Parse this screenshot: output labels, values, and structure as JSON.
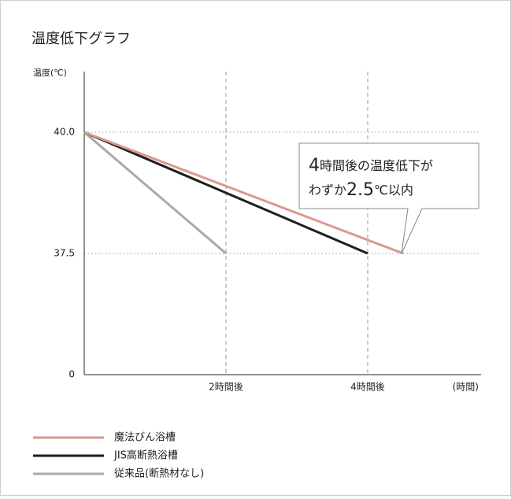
{
  "chart_data": {
    "type": "line",
    "title": "温度低下グラフ",
    "y_label": "温度(℃)",
    "x_label": "(時間)",
    "xlim": [
      0,
      5.6
    ],
    "xticks": [
      {
        "value": 2,
        "label": "2時間後"
      },
      {
        "value": 4,
        "label": "4時間後"
      }
    ],
    "ylim": [
      0,
      41.25
    ],
    "yticks": [
      0,
      37.5,
      {
        "value": 40,
        "label": "40.0"
      }
    ],
    "series": [
      {
        "name": "魔法びん浴槽",
        "color": "#d99a8c",
        "x": [
          0,
          4.5
        ],
        "values": [
          40,
          37.5
        ]
      },
      {
        "name": "JIS高断熱浴槽",
        "color": "#1e1e1e",
        "x": [
          0,
          4
        ],
        "values": [
          40,
          37.5
        ]
      },
      {
        "name": "従来品(断熱材なし)",
        "color": "#aaaaaa",
        "x": [
          0,
          2
        ],
        "values": [
          40,
          37.5
        ]
      }
    ],
    "annotation": {
      "line1": [
        "4",
        "時間後の温度低下が"
      ],
      "line2": [
        "わずか",
        "2.5",
        "℃以内"
      ]
    }
  }
}
